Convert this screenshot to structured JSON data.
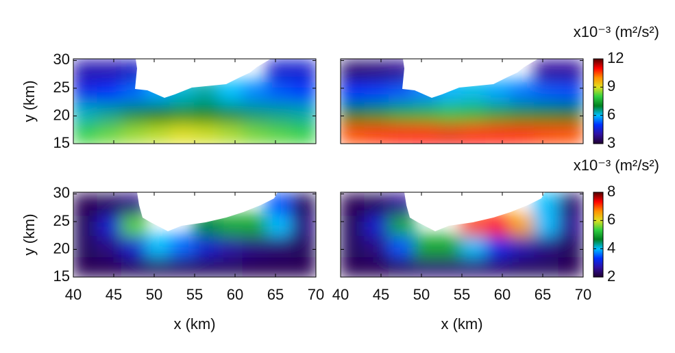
{
  "chart_data": [
    {
      "type": "heatmap",
      "ylabel": "y (km)",
      "x": [
        41.5,
        44.5,
        47.5,
        50.5,
        53.5,
        56.5,
        59.5,
        62.5,
        65.5,
        68.5
      ],
      "y": [
        16.9,
        20.6,
        24.4,
        28.1
      ],
      "z": [
        [
          8,
          8.3,
          8.6,
          8.8,
          9,
          8.9,
          8.7,
          8.4,
          8.2,
          8
        ],
        [
          6.3,
          6.5,
          6.8,
          7,
          7.2,
          7.1,
          6.8,
          6.6,
          6.5,
          6.4
        ],
        [
          4.8,
          5,
          5.4,
          5.8,
          6.2,
          6.4,
          6,
          5.6,
          5.3,
          5.1
        ],
        [
          4.2,
          4.2,
          4.4,
          null,
          null,
          null,
          null,
          null,
          4.5,
          4.5
        ]
      ],
      "xlim": [
        40,
        70
      ],
      "ylim": [
        15,
        30.3
      ],
      "yticks": [
        15,
        20,
        25,
        30
      ]
    },
    {
      "type": "heatmap",
      "x": [
        41.5,
        44.5,
        47.5,
        50.5,
        53.5,
        56.5,
        59.5,
        62.5,
        65.5,
        68.5
      ],
      "y": [
        16.9,
        20.6,
        24.4,
        28.1
      ],
      "z": [
        [
          10.5,
          10.7,
          10.9,
          11,
          11.1,
          11,
          10.9,
          10.8,
          10.6,
          10.5
        ],
        [
          7,
          7.2,
          7.5,
          7.6,
          7.8,
          7.7,
          7.4,
          7.2,
          7.1,
          7
        ],
        [
          5,
          5.1,
          5.3,
          5.6,
          5.9,
          6.1,
          5.8,
          5.5,
          5.3,
          5.2
        ],
        [
          3.6,
          3.7,
          3.9,
          null,
          null,
          null,
          null,
          null,
          4,
          4
        ]
      ],
      "xlim": [
        40,
        70
      ],
      "ylim": [
        15,
        30.3
      ],
      "colorbar": {
        "label": "x10⁻³ (m²/s²)",
        "clim": [
          3,
          12
        ],
        "ticks": [
          3,
          6,
          9,
          12
        ]
      }
    },
    {
      "type": "heatmap",
      "ylabel": "y (km)",
      "xlabel": "x (km)",
      "x": [
        41.5,
        44.5,
        47.5,
        50.5,
        53.5,
        56.5,
        59.5,
        62.5,
        65.5,
        68.5
      ],
      "y": [
        16.9,
        20.6,
        24.4,
        28.1
      ],
      "z": [
        [
          2.2,
          2.2,
          2.3,
          2.3,
          2.3,
          2.3,
          2.3,
          2.2,
          2.2,
          2.2
        ],
        [
          2.3,
          2.5,
          3,
          4,
          3.6,
          3,
          2.7,
          2.5,
          2.4,
          2.3
        ],
        [
          2.3,
          3,
          5.5,
          null,
          null,
          4.6,
          5,
          5,
          4,
          2.5
        ],
        [
          2.2,
          2.3,
          2.5,
          null,
          null,
          null,
          null,
          null,
          3.5,
          2.3
        ]
      ],
      "xlim": [
        40,
        70
      ],
      "ylim": [
        15,
        30.3
      ],
      "xticks": [
        40,
        45,
        50,
        55,
        60,
        65,
        70
      ],
      "yticks": [
        15,
        20,
        25,
        30
      ]
    },
    {
      "type": "heatmap",
      "xlabel": "x (km)",
      "x": [
        41.5,
        44.5,
        47.5,
        50.5,
        53.5,
        56.5,
        59.5,
        62.5,
        65.5,
        68.5
      ],
      "y": [
        16.9,
        20.6,
        24.4,
        28.1
      ],
      "z": [
        [
          2.2,
          2.2,
          2.3,
          2.4,
          2.4,
          2.4,
          2.4,
          2.3,
          2.3,
          2.2
        ],
        [
          2.3,
          2.5,
          3.5,
          5,
          5,
          4,
          3.2,
          2.8,
          2.5,
          2.3
        ],
        [
          2.3,
          3,
          5,
          null,
          null,
          7,
          7.2,
          6.5,
          4,
          2.6
        ],
        [
          2.2,
          2.3,
          2.6,
          null,
          null,
          null,
          null,
          null,
          4,
          2.4
        ]
      ],
      "xlim": [
        40,
        70
      ],
      "ylim": [
        15,
        30.3
      ],
      "xticks": [
        40,
        45,
        50,
        55,
        60,
        65,
        70
      ],
      "colorbar": {
        "label": "x10⁻³ (m²/s²)",
        "clim": [
          2,
          8
        ],
        "ticks": [
          2,
          4,
          6,
          8
        ]
      }
    }
  ],
  "colorscale": [
    "#200030",
    "#3010a0",
    "#0030ff",
    "#00c0ff",
    "#008020",
    "#30d040",
    "#e0e020",
    "#ff9000",
    "#ff0000",
    "#500000"
  ]
}
